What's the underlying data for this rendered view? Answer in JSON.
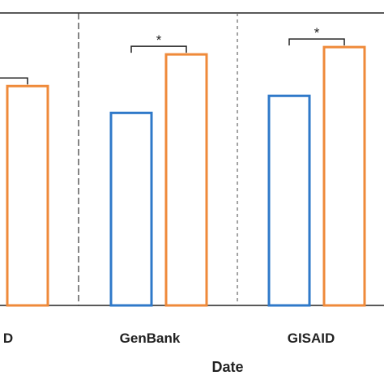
{
  "chart_data": {
    "type": "bar",
    "xlabel": "Date",
    "ylabel": "",
    "title": "",
    "categories": [
      "D",
      "GenBank",
      "GISAID"
    ],
    "series": [
      {
        "color": "#2f79c9",
        "values": [
          null,
          0.79,
          0.86
        ]
      },
      {
        "color": "#ef8a3a",
        "values": [
          0.9,
          1.03,
          1.06
        ]
      }
    ],
    "ylim": [
      0,
      1.2
    ],
    "grid": false,
    "significance": [
      {
        "category": "D",
        "label": ""
      },
      {
        "category": "GenBank",
        "label": "*"
      },
      {
        "category": "GISAID",
        "label": "*"
      }
    ]
  }
}
